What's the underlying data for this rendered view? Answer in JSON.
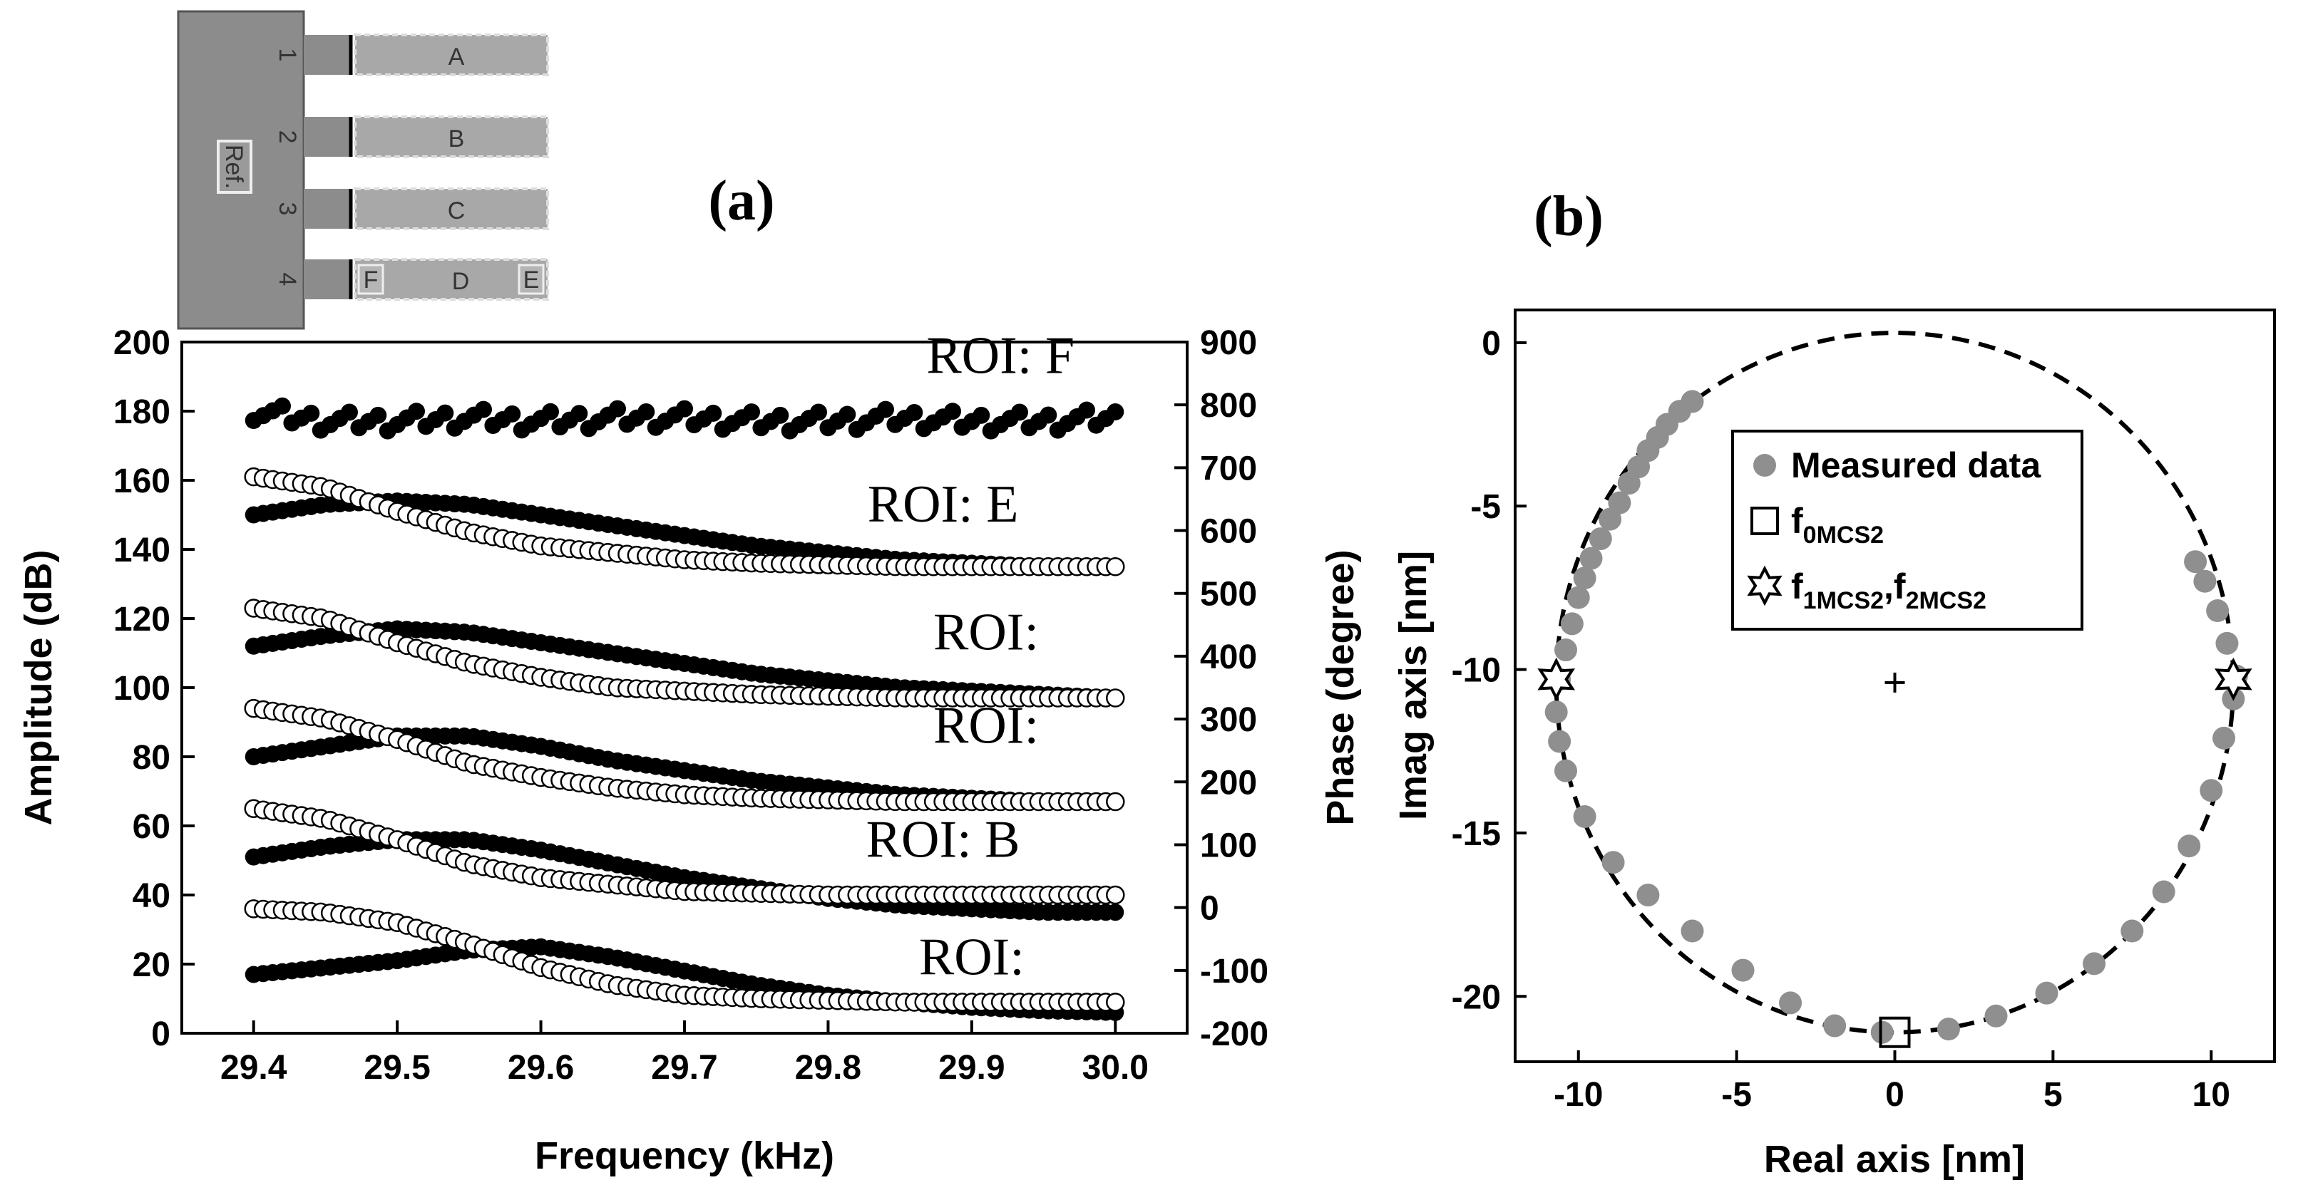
{
  "panel_labels": {
    "a": "(a)",
    "b": "(b)"
  },
  "schematic": {
    "ref_label": "Ref.",
    "beam_numbers": [
      "1",
      "2",
      "3",
      "4"
    ],
    "beam_letters": [
      "A",
      "B",
      "C",
      "D"
    ],
    "end_tags": [
      "F",
      "E"
    ]
  },
  "chart_data": [
    {
      "type": "line",
      "title": "",
      "xlabel": "Frequency (kHz)",
      "ylabel": "Amplitude (dB)",
      "y2label": "Phase (degree)",
      "xlim": [
        29.35,
        30.05
      ],
      "ylim": [
        0,
        200
      ],
      "y2lim": [
        -200,
        900
      ],
      "xticks": [
        "29.4",
        "29.5",
        "29.6",
        "29.7",
        "29.8",
        "29.9",
        "30.0"
      ],
      "yticks": [
        "0",
        "20",
        "40",
        "60",
        "80",
        "100",
        "120",
        "140",
        "160",
        "180",
        "200"
      ],
      "y2ticks": [
        "-200",
        "-100",
        "0",
        "100",
        "200",
        "300",
        "400",
        "500",
        "600",
        "700",
        "800",
        "900"
      ],
      "roi_labels": [
        {
          "text": "ROI: F",
          "x": 29.92,
          "y": 191
        },
        {
          "text": "ROI: E",
          "x": 29.88,
          "y": 148
        },
        {
          "text": "ROI:",
          "x": 29.91,
          "y": 111
        },
        {
          "text": "ROI:",
          "x": 29.91,
          "y": 84
        },
        {
          "text": "ROI: B",
          "x": 29.88,
          "y": 51
        },
        {
          "text": "ROI:",
          "x": 29.9,
          "y": 17
        }
      ],
      "series": [
        {
          "marker": "filled",
          "x": [
            29.4,
            29.45,
            29.5,
            29.55,
            29.6,
            29.65,
            29.7,
            29.75,
            29.8,
            29.85,
            29.9,
            29.95,
            30.0
          ],
          "y": [
            180,
            177,
            177,
            178,
            177,
            178,
            178,
            177,
            177,
            178,
            177,
            177,
            178
          ]
        },
        {
          "marker": "filled",
          "x": [
            29.4,
            29.45,
            29.5,
            29.55,
            29.6,
            29.65,
            29.7,
            29.75,
            29.8,
            29.85,
            29.9,
            29.95,
            30.0
          ],
          "y": [
            150,
            153,
            154,
            153,
            150,
            147,
            144,
            141,
            139,
            137,
            136,
            135,
            135
          ]
        },
        {
          "marker": "open",
          "x": [
            29.4,
            29.45,
            29.5,
            29.55,
            29.6,
            29.65,
            29.7,
            29.75,
            29.8,
            29.85,
            29.9,
            29.95,
            30.0
          ],
          "y": [
            161,
            158,
            151,
            145,
            141,
            139,
            137,
            136,
            135.5,
            135,
            135,
            135,
            135
          ]
        },
        {
          "marker": "filled",
          "x": [
            29.4,
            29.45,
            29.5,
            29.55,
            29.6,
            29.65,
            29.7,
            29.75,
            29.8,
            29.85,
            29.9,
            29.95,
            30.0
          ],
          "y": [
            112,
            115,
            117,
            116,
            113,
            110,
            107,
            104,
            102,
            100,
            99,
            98,
            97
          ]
        },
        {
          "marker": "open",
          "x": [
            29.4,
            29.45,
            29.5,
            29.55,
            29.6,
            29.65,
            29.7,
            29.75,
            29.8,
            29.85,
            29.9,
            29.95,
            30.0
          ],
          "y": [
            123,
            120,
            113,
            107,
            103,
            100,
            99,
            98,
            97.5,
            97,
            97,
            97,
            97
          ]
        },
        {
          "marker": "filled",
          "x": [
            29.4,
            29.45,
            29.5,
            29.55,
            29.6,
            29.65,
            29.7,
            29.75,
            29.8,
            29.85,
            29.9,
            29.95,
            30.0
          ],
          "y": [
            80,
            83,
            86,
            86,
            83,
            79,
            76,
            73,
            71,
            69,
            68,
            67,
            67
          ]
        },
        {
          "marker": "open",
          "x": [
            29.4,
            29.45,
            29.5,
            29.55,
            29.6,
            29.65,
            29.7,
            29.75,
            29.8,
            29.85,
            29.9,
            29.95,
            30.0
          ],
          "y": [
            94,
            91,
            85,
            78,
            74,
            71,
            69,
            68,
            67.5,
            67,
            67,
            67,
            67
          ]
        },
        {
          "marker": "filled",
          "x": [
            29.4,
            29.45,
            29.5,
            29.55,
            29.6,
            29.65,
            29.7,
            29.75,
            29.8,
            29.85,
            29.9,
            29.95,
            30.0
          ],
          "y": [
            51,
            54,
            56,
            56,
            53,
            49,
            45,
            42,
            39,
            37,
            36,
            35,
            35
          ]
        },
        {
          "marker": "open",
          "x": [
            29.4,
            29.45,
            29.5,
            29.55,
            29.6,
            29.65,
            29.7,
            29.75,
            29.8,
            29.85,
            29.9,
            29.95,
            30.0
          ],
          "y": [
            65,
            62,
            56,
            49,
            45,
            43,
            41,
            40.5,
            40,
            40,
            40,
            40,
            40
          ]
        },
        {
          "marker": "filled",
          "x": [
            29.4,
            29.45,
            29.5,
            29.55,
            29.6,
            29.65,
            29.7,
            29.75,
            29.8,
            29.85,
            29.9,
            29.95,
            30.0
          ],
          "y": [
            17,
            19,
            21,
            24,
            25,
            22,
            18,
            14,
            11,
            9,
            7.5,
            6.5,
            6
          ]
        },
        {
          "marker": "open",
          "x": [
            29.4,
            29.45,
            29.5,
            29.55,
            29.6,
            29.65,
            29.7,
            29.75,
            29.8,
            29.85,
            29.9,
            29.95,
            30.0
          ],
          "y": [
            36,
            35,
            32,
            26,
            19,
            14,
            11,
            10,
            9.5,
            9,
            9,
            9,
            9
          ]
        }
      ]
    },
    {
      "type": "scatter",
      "title": "",
      "xlabel": "Real axis [nm]",
      "ylabel": "Imag axis [nm]",
      "xlim": [
        -12,
        12
      ],
      "ylim": [
        -22,
        1
      ],
      "xticks": [
        "-10",
        "-5",
        "0",
        "5",
        "10"
      ],
      "yticks": [
        "0",
        "-5",
        "-10",
        "-15",
        "-20"
      ],
      "circle_fit": {
        "center": [
          0,
          -10.4
        ],
        "radius": 10.7
      },
      "center_marker": [
        0,
        -10.4
      ],
      "legend": {
        "position": "upper-right",
        "entries": [
          {
            "marker": "filled-circle",
            "text": "Measured data",
            "sub": ""
          },
          {
            "marker": "square",
            "text": "f",
            "sub": "0MCS2"
          },
          {
            "marker": "star",
            "text": "f",
            "sub": "1MCS2",
            "text2": ",f",
            "sub2": "2MCS2"
          }
        ]
      },
      "measured_points": [
        [
          -6.4,
          -1.8
        ],
        [
          -6.8,
          -2.1
        ],
        [
          -7.2,
          -2.5
        ],
        [
          -7.5,
          -2.9
        ],
        [
          -7.8,
          -3.3
        ],
        [
          -8.1,
          -3.8
        ],
        [
          -8.4,
          -4.3
        ],
        [
          -8.7,
          -4.9
        ],
        [
          -9.0,
          -5.4
        ],
        [
          -9.3,
          -6.0
        ],
        [
          -9.6,
          -6.6
        ],
        [
          -9.8,
          -7.2
        ],
        [
          -10.0,
          -7.8
        ],
        [
          -10.2,
          -8.6
        ],
        [
          -10.4,
          -9.4
        ],
        [
          -10.6,
          -10.3
        ],
        [
          -10.7,
          -11.3
        ],
        [
          -10.6,
          -12.2
        ],
        [
          -10.4,
          -13.1
        ],
        [
          -9.8,
          -14.5
        ],
        [
          -8.9,
          -15.9
        ],
        [
          -7.8,
          -16.9
        ],
        [
          -6.4,
          -18.0
        ],
        [
          -4.8,
          -19.2
        ],
        [
          -3.3,
          -20.2
        ],
        [
          -1.9,
          -20.9
        ],
        [
          -0.4,
          -21.1
        ],
        [
          1.7,
          -21.0
        ],
        [
          3.2,
          -20.6
        ],
        [
          4.8,
          -19.9
        ],
        [
          6.3,
          -19.0
        ],
        [
          7.5,
          -18.0
        ],
        [
          8.5,
          -16.8
        ],
        [
          9.3,
          -15.4
        ],
        [
          10.0,
          -13.7
        ],
        [
          10.4,
          -12.1
        ],
        [
          10.7,
          -10.9
        ],
        [
          10.8,
          -10.2
        ],
        [
          10.5,
          -9.2
        ],
        [
          10.2,
          -8.2
        ],
        [
          9.8,
          -7.3
        ],
        [
          9.5,
          -6.7
        ]
      ],
      "f0": [
        0,
        -21.1
      ],
      "f1": [
        -10.7,
        -10.3
      ],
      "f2": [
        10.7,
        -10.3
      ]
    }
  ]
}
